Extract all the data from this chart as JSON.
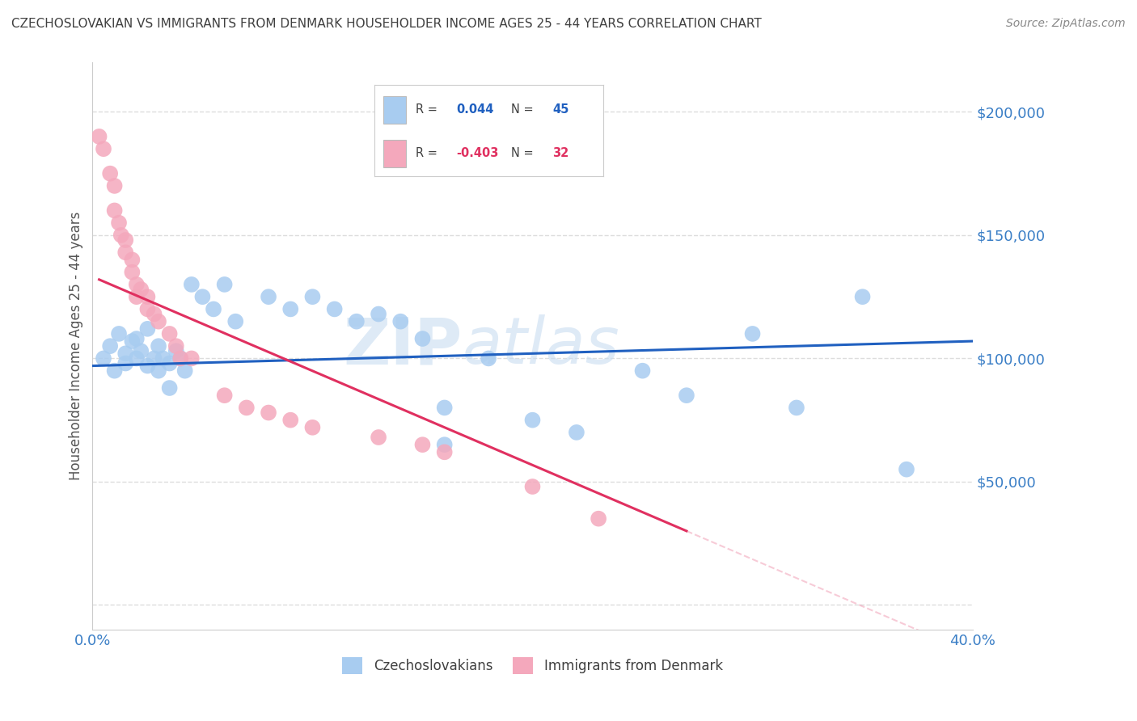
{
  "title": "CZECHOSLOVAKIAN VS IMMIGRANTS FROM DENMARK HOUSEHOLDER INCOME AGES 25 - 44 YEARS CORRELATION CHART",
  "source": "Source: ZipAtlas.com",
  "ylabel": "Householder Income Ages 25 - 44 years",
  "xlim": [
    0.0,
    0.4
  ],
  "ylim": [
    -10000,
    220000
  ],
  "yticks": [
    0,
    50000,
    100000,
    150000,
    200000
  ],
  "ytick_labels": [
    "",
    "$50,000",
    "$100,000",
    "$150,000",
    "$200,000"
  ],
  "xticks": [
    0.0,
    0.05,
    0.1,
    0.15,
    0.2,
    0.25,
    0.3,
    0.35,
    0.4
  ],
  "xtick_labels": [
    "0.0%",
    "",
    "",
    "",
    "",
    "",
    "",
    "",
    "40.0%"
  ],
  "blue_R": 0.044,
  "blue_N": 45,
  "pink_R": -0.403,
  "pink_N": 32,
  "blue_color": "#A8CCF0",
  "pink_color": "#F4A8BC",
  "blue_line_color": "#2060C0",
  "pink_line_color": "#E03060",
  "blue_scatter_x": [
    0.005,
    0.008,
    0.01,
    0.012,
    0.015,
    0.015,
    0.018,
    0.02,
    0.02,
    0.022,
    0.025,
    0.025,
    0.028,
    0.03,
    0.03,
    0.032,
    0.035,
    0.035,
    0.038,
    0.04,
    0.042,
    0.045,
    0.05,
    0.055,
    0.06,
    0.065,
    0.08,
    0.09,
    0.1,
    0.11,
    0.12,
    0.13,
    0.14,
    0.15,
    0.16,
    0.18,
    0.2,
    0.22,
    0.25,
    0.27,
    0.3,
    0.32,
    0.35,
    0.16,
    0.37
  ],
  "blue_scatter_y": [
    100000,
    105000,
    95000,
    110000,
    102000,
    98000,
    107000,
    100000,
    108000,
    103000,
    97000,
    112000,
    100000,
    95000,
    105000,
    100000,
    88000,
    98000,
    103000,
    100000,
    95000,
    130000,
    125000,
    120000,
    130000,
    115000,
    125000,
    120000,
    125000,
    120000,
    115000,
    118000,
    115000,
    108000,
    80000,
    100000,
    75000,
    70000,
    95000,
    85000,
    110000,
    80000,
    125000,
    65000,
    55000
  ],
  "pink_scatter_x": [
    0.003,
    0.005,
    0.008,
    0.01,
    0.01,
    0.012,
    0.013,
    0.015,
    0.015,
    0.018,
    0.018,
    0.02,
    0.02,
    0.022,
    0.025,
    0.025,
    0.028,
    0.03,
    0.035,
    0.038,
    0.04,
    0.045,
    0.06,
    0.07,
    0.08,
    0.09,
    0.1,
    0.13,
    0.15,
    0.16,
    0.2,
    0.23
  ],
  "pink_scatter_y": [
    190000,
    185000,
    175000,
    170000,
    160000,
    155000,
    150000,
    148000,
    143000,
    140000,
    135000,
    130000,
    125000,
    128000,
    125000,
    120000,
    118000,
    115000,
    110000,
    105000,
    100000,
    100000,
    85000,
    80000,
    78000,
    75000,
    72000,
    68000,
    65000,
    62000,
    48000,
    35000
  ],
  "watermark_line1": "ZIP",
  "watermark_line2": "atlas",
  "background_color": "#FFFFFF",
  "grid_color": "#DDDDDD",
  "title_color": "#404040",
  "axis_label_color": "#555555",
  "tick_color": "#3A7EC6",
  "source_color": "#888888"
}
